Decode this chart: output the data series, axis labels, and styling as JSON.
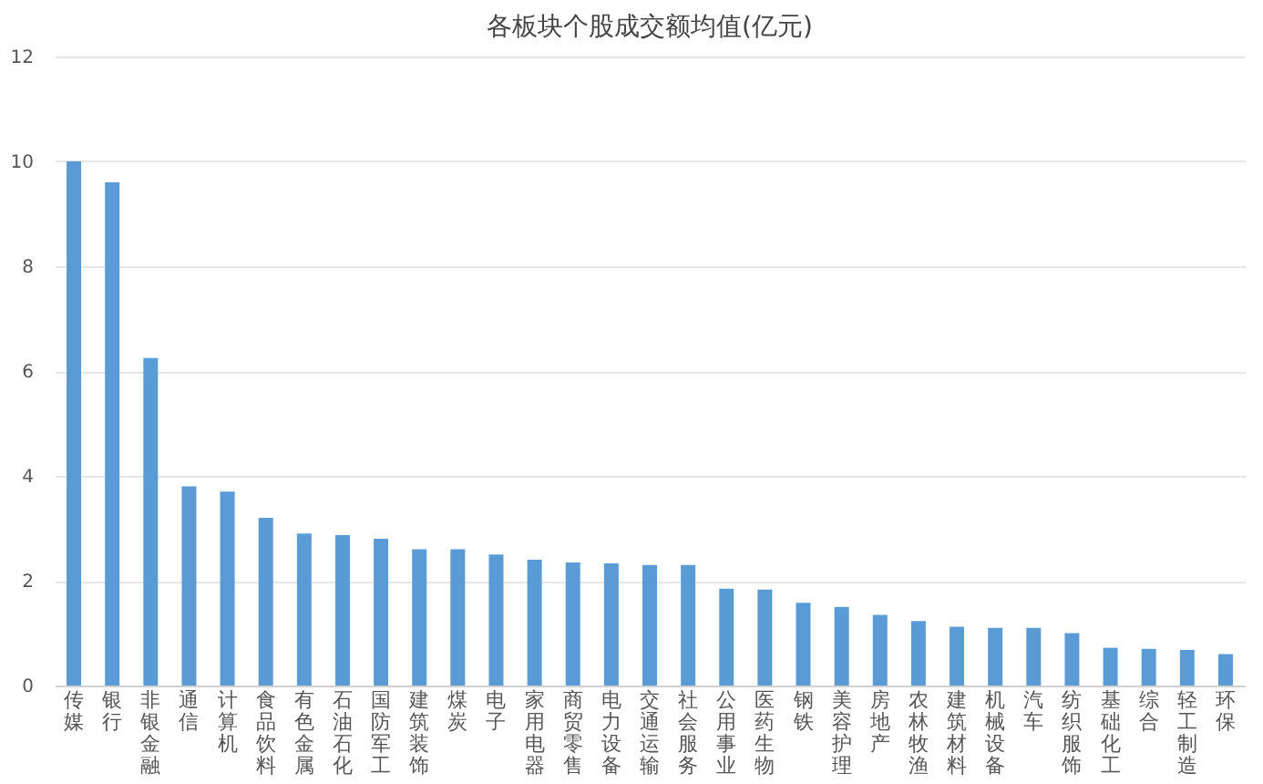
{
  "chart_data": {
    "type": "bar",
    "title": "各板块个股成交额均值(亿元)",
    "categories": [
      "传媒",
      "银行",
      "非银金融",
      "通信",
      "计算机",
      "食品饮料",
      "有色金属",
      "石油石化",
      "国防军工",
      "建筑装饰",
      "煤炭",
      "电子",
      "家用电器",
      "商贸零售",
      "电力设备",
      "交通运输",
      "社会服务",
      "公用事业",
      "医药生物",
      "钢铁",
      "美容护理",
      "房地产",
      "农林牧渔",
      "建筑材料",
      "机械设备",
      "汽车",
      "纺织服饰",
      "基础化工",
      "综合",
      "轻工制造",
      "环保"
    ],
    "values": [
      10.0,
      9.6,
      6.25,
      3.8,
      3.7,
      3.2,
      2.9,
      2.87,
      2.8,
      2.6,
      2.6,
      2.5,
      2.4,
      2.35,
      2.33,
      2.3,
      2.3,
      1.85,
      1.83,
      1.58,
      1.5,
      1.35,
      1.23,
      1.12,
      1.1,
      1.1,
      1.0,
      0.72,
      0.7,
      0.68,
      0.6
    ],
    "color": "#5b9bd5",
    "ylim": [
      0,
      12
    ],
    "yticks": [
      0,
      2,
      4,
      6,
      8,
      10,
      12
    ],
    "grid": "y"
  }
}
